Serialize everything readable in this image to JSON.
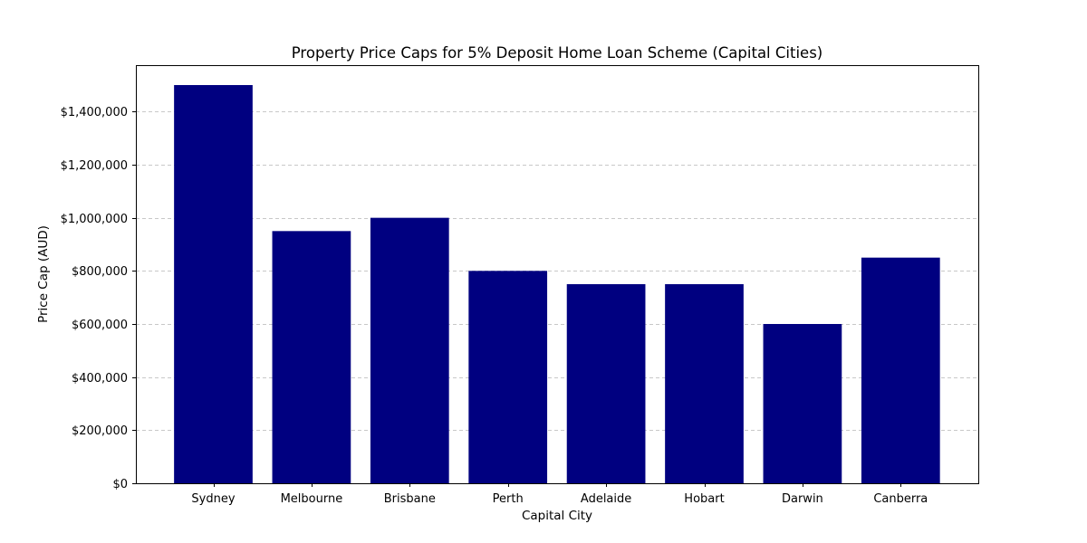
{
  "chart_data": {
    "type": "bar",
    "title": "Property Price Caps for 5% Deposit Home Loan Scheme (Capital Cities)",
    "xlabel": "Capital City",
    "ylabel": "Price Cap (AUD)",
    "categories": [
      "Sydney",
      "Melbourne",
      "Brisbane",
      "Perth",
      "Adelaide",
      "Hobart",
      "Darwin",
      "Canberra"
    ],
    "values": [
      1500000,
      950000,
      1000000,
      800000,
      750000,
      750000,
      600000,
      850000
    ],
    "ylim": [
      0,
      1575000
    ],
    "yticks": [
      0,
      200000,
      400000,
      600000,
      800000,
      1000000,
      1200000,
      1400000
    ],
    "ytick_labels": [
      "$0",
      "$200,000",
      "$400,000",
      "$600,000",
      "$800,000",
      "$1,000,000",
      "$1,200,000",
      "$1,400,000"
    ],
    "grid": "y-dashed",
    "bar_color": "#000080",
    "grid_color": "#c8c8c8"
  }
}
